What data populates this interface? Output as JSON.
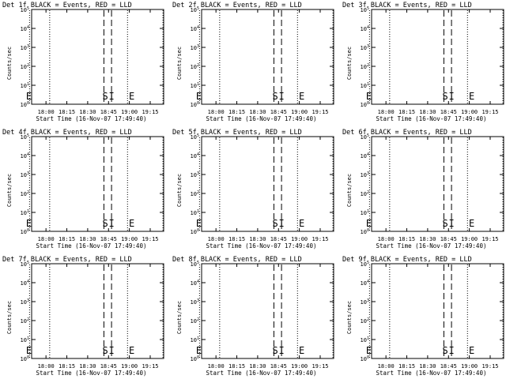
{
  "chart_data": [
    {
      "type": "line",
      "title": "Det 1f BLACK = Events, RED = LLD",
      "xlabel": "Start Time (16-Nov-07 17:49:40)",
      "ylabel": "Counts/sec"
    },
    {
      "type": "line",
      "title": "Det 2f BLACK = Events, RED = LLD",
      "xlabel": "Start Time (16-Nov-07 17:49:40)",
      "ylabel": "Counts/sec"
    },
    {
      "type": "line",
      "title": "Det 3f BLACK = Events, RED = LLD",
      "xlabel": "Start Time (16-Nov-07 17:49:40)",
      "ylabel": "Counts/sec"
    },
    {
      "type": "line",
      "title": "Det 4f BLACK = Events, RED = LLD",
      "xlabel": "Start Time (16-Nov-07 17:49:40)",
      "ylabel": "Counts/sec"
    },
    {
      "type": "line",
      "title": "Det 5f BLACK = Events, RED = LLD",
      "xlabel": "Start Time (16-Nov-07 17:49:40)",
      "ylabel": "Counts/sec"
    },
    {
      "type": "line",
      "title": "Det 6f BLACK = Events, RED = LLD",
      "xlabel": "Start Time (16-Nov-07 17:49:40)",
      "ylabel": "Counts/sec"
    },
    {
      "type": "line",
      "title": "Det 7f BLACK = Events, RED = LLD",
      "xlabel": "Start Time (16-Nov-07 17:49:40)",
      "ylabel": "Counts/sec"
    },
    {
      "type": "line",
      "title": "Det 8f BLACK = Events, RED = LLD",
      "xlabel": "Start Time (16-Nov-07 17:49:40)",
      "ylabel": "Counts/sec"
    },
    {
      "type": "line",
      "title": "Det 9f BLACK = Events, RED = LLD",
      "xlabel": "Start Time (16-Nov-07 17:49:40)",
      "ylabel": "Counts/sec"
    }
  ],
  "shared": {
    "x_tick_labels": [
      "18:00",
      "18:15",
      "18:30",
      "18:45",
      "19:00",
      "19:15"
    ],
    "x_tick_minutes": [
      10.33,
      25.33,
      40.33,
      55.33,
      70.33,
      85.33
    ],
    "x_range_minutes": [
      0,
      95
    ],
    "y_exponents": [
      0,
      1,
      2,
      3,
      4,
      5
    ],
    "y_base": "10",
    "dotted_line_minutes": [
      -1.5,
      13,
      69,
      94.5
    ],
    "dashed_line_minutes": [
      52,
      57.5
    ],
    "markers": [
      {
        "label": "E",
        "minute": -2
      },
      {
        "label": "S",
        "minute": 53
      },
      {
        "label": "I",
        "minute": 57.5
      },
      {
        "label": "E",
        "minute": 72
      }
    ]
  }
}
